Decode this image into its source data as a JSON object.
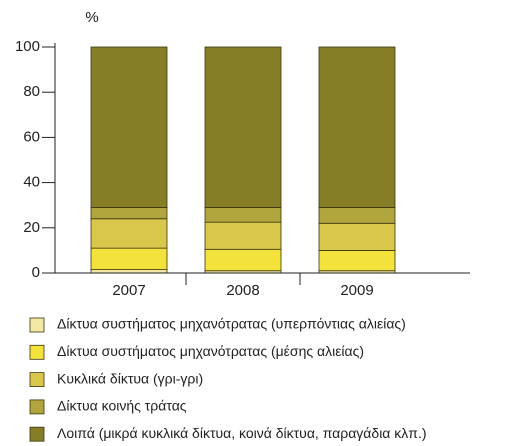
{
  "chart_data": {
    "type": "stacked_bar",
    "y_label": "%",
    "categories": [
      "2007",
      "2008",
      "2009"
    ],
    "series": [
      {
        "name": "Δίκτυα συστήματος μηχανότρατας (υπερπόντιας αλιείας)",
        "color": "#f3e8a4",
        "values": [
          1.5,
          1,
          1
        ]
      },
      {
        "name": "Δίκτυα συστήματος μηχανότρατας (μέσης αλιείας)",
        "color": "#f3e13c",
        "values": [
          9.5,
          9.5,
          9
        ]
      },
      {
        "name": "Κυκλικά δίκτυα (γρι-γρι)",
        "color": "#d9c74b",
        "values": [
          13,
          12,
          12
        ]
      },
      {
        "name": "Δίκτυα κοινής τράτας",
        "color": "#b1a53d",
        "values": [
          5,
          6.5,
          7
        ]
      },
      {
        "name": "Λοιπά (μικρά κυκλικά δίκτυα, κοινά δίκτυα, παραγάδια κλπ.)",
        "color": "#867e26",
        "values": [
          71,
          71,
          71
        ]
      }
    ],
    "ylim": [
      0,
      100
    ],
    "yticks": [
      0,
      20,
      40,
      60,
      80,
      100
    ],
    "grid": false
  }
}
